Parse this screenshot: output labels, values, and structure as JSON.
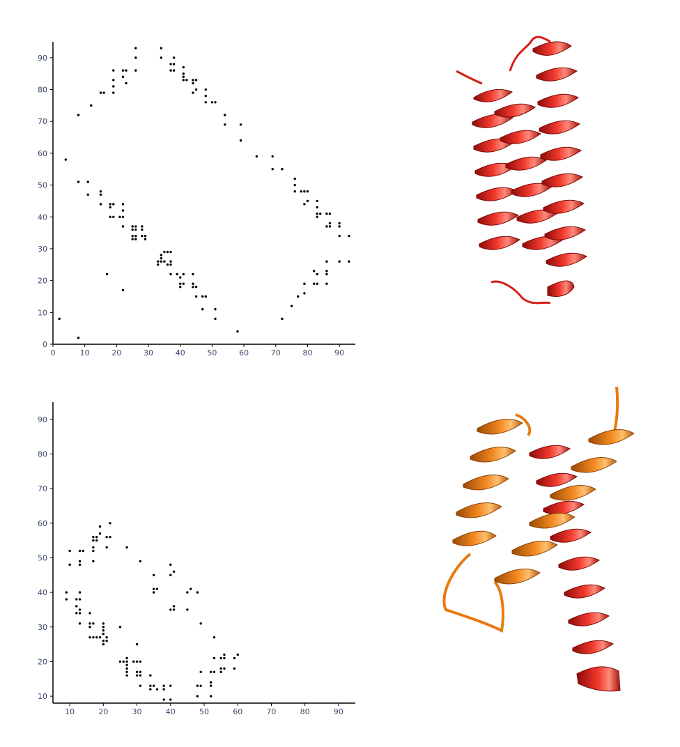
{
  "chart_data": [
    {
      "type": "scatter",
      "title": "",
      "xlabel": "",
      "ylabel": "",
      "xlim": [
        0,
        95
      ],
      "ylim": [
        0,
        95
      ],
      "grid": false,
      "xticks": [
        0,
        10,
        20,
        30,
        40,
        50,
        60,
        70,
        80,
        90
      ],
      "yticks": [
        0,
        10,
        20,
        30,
        40,
        50,
        60,
        70,
        80,
        90
      ],
      "marker_color": "#000000",
      "axis_color": "#000000",
      "tick_label_color": "#3b4a6b",
      "points": [
        [
          2,
          8
        ],
        [
          4,
          58
        ],
        [
          8,
          2
        ],
        [
          8,
          51
        ],
        [
          8,
          72
        ],
        [
          11,
          51
        ],
        [
          11,
          47
        ],
        [
          12,
          75
        ],
        [
          15,
          79
        ],
        [
          16,
          79
        ],
        [
          15,
          48
        ],
        [
          15,
          47
        ],
        [
          15,
          44
        ],
        [
          17,
          22
        ],
        [
          18,
          44
        ],
        [
          18,
          43
        ],
        [
          18,
          40
        ],
        [
          19,
          44
        ],
        [
          19,
          40
        ],
        [
          19,
          79
        ],
        [
          19,
          81
        ],
        [
          19,
          83
        ],
        [
          19,
          86
        ],
        [
          21,
          40
        ],
        [
          22,
          40
        ],
        [
          22,
          42
        ],
        [
          22,
          44
        ],
        [
          22,
          37
        ],
        [
          22,
          17
        ],
        [
          22,
          86
        ],
        [
          22,
          84
        ],
        [
          23,
          86
        ],
        [
          23,
          82
        ],
        [
          25,
          37
        ],
        [
          25,
          36
        ],
        [
          25,
          34
        ],
        [
          25,
          33
        ],
        [
          26,
          37
        ],
        [
          26,
          36
        ],
        [
          26,
          34
        ],
        [
          26,
          33
        ],
        [
          26,
          86
        ],
        [
          26,
          90
        ],
        [
          26,
          93
        ],
        [
          28,
          37
        ],
        [
          28,
          36
        ],
        [
          28,
          34
        ],
        [
          29,
          33
        ],
        [
          29,
          34
        ],
        [
          33,
          26
        ],
        [
          33,
          25
        ],
        [
          34,
          28
        ],
        [
          34,
          27
        ],
        [
          34,
          26
        ],
        [
          35,
          29
        ],
        [
          35,
          26
        ],
        [
          34,
          93
        ],
        [
          34,
          90
        ],
        [
          36,
          29
        ],
        [
          36,
          25
        ],
        [
          37,
          29
        ],
        [
          37,
          26
        ],
        [
          37,
          25
        ],
        [
          37,
          22
        ],
        [
          37,
          88
        ],
        [
          37,
          86
        ],
        [
          38,
          90
        ],
        [
          38,
          88
        ],
        [
          38,
          86
        ],
        [
          39,
          22
        ],
        [
          40,
          21
        ],
        [
          40,
          19
        ],
        [
          40,
          18
        ],
        [
          41,
          22
        ],
        [
          41,
          19
        ],
        [
          41,
          84
        ],
        [
          41,
          83
        ],
        [
          41,
          87
        ],
        [
          41,
          85
        ],
        [
          42,
          83
        ],
        [
          44,
          22
        ],
        [
          44,
          19
        ],
        [
          44,
          18
        ],
        [
          44,
          83
        ],
        [
          44,
          82
        ],
        [
          44,
          79
        ],
        [
          45,
          18
        ],
        [
          45,
          15
        ],
        [
          45,
          83
        ],
        [
          45,
          80
        ],
        [
          47,
          15
        ],
        [
          47,
          11
        ],
        [
          48,
          15
        ],
        [
          48,
          80
        ],
        [
          48,
          78
        ],
        [
          48,
          76
        ],
        [
          50,
          76
        ],
        [
          51,
          76
        ],
        [
          51,
          11
        ],
        [
          51,
          8
        ],
        [
          54,
          72
        ],
        [
          54,
          69
        ],
        [
          58,
          4
        ],
        [
          59,
          69
        ],
        [
          59,
          64
        ],
        [
          64,
          59
        ],
        [
          69,
          59
        ],
        [
          69,
          55
        ],
        [
          72,
          55
        ],
        [
          72,
          8
        ],
        [
          75,
          12
        ],
        [
          76,
          52
        ],
        [
          76,
          50
        ],
        [
          76,
          48
        ],
        [
          77,
          15
        ],
        [
          78,
          48
        ],
        [
          79,
          48
        ],
        [
          79,
          44
        ],
        [
          79,
          19
        ],
        [
          79,
          16
        ],
        [
          80,
          45
        ],
        [
          80,
          48
        ],
        [
          82,
          23
        ],
        [
          82,
          19
        ],
        [
          83,
          45
        ],
        [
          83,
          43
        ],
        [
          83,
          41
        ],
        [
          83,
          40
        ],
        [
          83,
          19
        ],
        [
          83,
          22
        ],
        [
          84,
          41
        ],
        [
          86,
          41
        ],
        [
          86,
          37
        ],
        [
          86,
          26
        ],
        [
          86,
          23
        ],
        [
          86,
          22
        ],
        [
          86,
          19
        ],
        [
          87,
          41
        ],
        [
          87,
          38
        ],
        [
          87,
          37
        ],
        [
          90,
          38
        ],
        [
          90,
          37
        ],
        [
          90,
          34
        ],
        [
          90,
          26
        ],
        [
          93,
          34
        ],
        [
          93,
          26
        ]
      ]
    },
    {
      "type": "scatter",
      "title": "",
      "xlabel": "",
      "ylabel": "",
      "xlim": [
        5,
        95
      ],
      "ylim": [
        8,
        95
      ],
      "grid": false,
      "xticks": [
        10,
        20,
        30,
        40,
        50,
        60,
        70,
        80,
        90
      ],
      "yticks": [
        10,
        20,
        30,
        40,
        50,
        60,
        70,
        80,
        90
      ],
      "marker_color": "#000000",
      "axis_color": "#000000",
      "tick_label_color": "#3b4a6b",
      "points": [
        [
          9,
          40
        ],
        [
          9,
          38
        ],
        [
          10,
          52
        ],
        [
          10,
          48
        ],
        [
          12,
          38
        ],
        [
          12,
          36
        ],
        [
          12,
          34
        ],
        [
          13,
          52
        ],
        [
          13,
          49
        ],
        [
          13,
          48
        ],
        [
          13,
          40
        ],
        [
          13,
          38
        ],
        [
          13,
          35
        ],
        [
          13,
          34
        ],
        [
          13,
          31
        ],
        [
          14,
          52
        ],
        [
          16,
          34
        ],
        [
          16,
          31
        ],
        [
          16,
          30
        ],
        [
          16,
          27
        ],
        [
          17,
          31
        ],
        [
          17,
          27
        ],
        [
          17,
          49
        ],
        [
          17,
          52
        ],
        [
          17,
          53
        ],
        [
          17,
          55
        ],
        [
          17,
          56
        ],
        [
          18,
          56
        ],
        [
          18,
          27
        ],
        [
          18,
          55
        ],
        [
          19,
          59
        ],
        [
          19,
          57
        ],
        [
          19,
          27
        ],
        [
          20,
          31
        ],
        [
          20,
          30
        ],
        [
          20,
          29
        ],
        [
          20,
          28
        ],
        [
          20,
          26
        ],
        [
          20,
          25
        ],
        [
          21,
          56
        ],
        [
          21,
          53
        ],
        [
          21,
          27
        ],
        [
          21,
          26
        ],
        [
          22,
          60
        ],
        [
          22,
          56
        ],
        [
          25,
          30
        ],
        [
          25,
          20
        ],
        [
          26,
          20
        ],
        [
          27,
          53
        ],
        [
          27,
          21
        ],
        [
          27,
          20
        ],
        [
          27,
          19
        ],
        [
          27,
          18
        ],
        [
          27,
          17
        ],
        [
          27,
          16
        ],
        [
          29,
          20
        ],
        [
          30,
          25
        ],
        [
          30,
          20
        ],
        [
          30,
          17
        ],
        [
          30,
          16
        ],
        [
          31,
          49
        ],
        [
          31,
          20
        ],
        [
          31,
          17
        ],
        [
          31,
          16
        ],
        [
          31,
          13
        ],
        [
          34,
          16
        ],
        [
          34,
          13
        ],
        [
          34,
          12
        ],
        [
          35,
          45
        ],
        [
          35,
          41
        ],
        [
          35,
          40
        ],
        [
          35,
          13
        ],
        [
          36,
          41
        ],
        [
          36,
          12
        ],
        [
          38,
          13
        ],
        [
          38,
          12
        ],
        [
          38,
          9
        ],
        [
          40,
          48
        ],
        [
          40,
          45
        ],
        [
          40,
          35
        ],
        [
          40,
          13
        ],
        [
          40,
          9
        ],
        [
          41,
          46
        ],
        [
          41,
          36
        ],
        [
          41,
          35
        ],
        [
          45,
          40
        ],
        [
          45,
          35
        ],
        [
          46,
          41
        ],
        [
          48,
          40
        ],
        [
          48,
          13
        ],
        [
          48,
          10
        ],
        [
          49,
          31
        ],
        [
          49,
          17
        ],
        [
          49,
          13
        ],
        [
          52,
          17
        ],
        [
          52,
          14
        ],
        [
          52,
          13
        ],
        [
          52,
          10
        ],
        [
          53,
          27
        ],
        [
          53,
          21
        ],
        [
          53,
          17
        ],
        [
          55,
          21
        ],
        [
          55,
          18
        ],
        [
          55,
          17
        ],
        [
          56,
          22
        ],
        [
          56,
          21
        ],
        [
          56,
          18
        ],
        [
          59,
          21
        ],
        [
          59,
          18
        ],
        [
          60,
          22
        ]
      ]
    }
  ],
  "illustrations": {
    "top_protein": {
      "icon": "protein-ribbon-icon",
      "colors": [
        "#e8201a"
      ]
    },
    "bottom_protein": {
      "icon": "protein-ribbon-icon",
      "colors": [
        "#f07f1a",
        "#e8201a"
      ]
    }
  }
}
